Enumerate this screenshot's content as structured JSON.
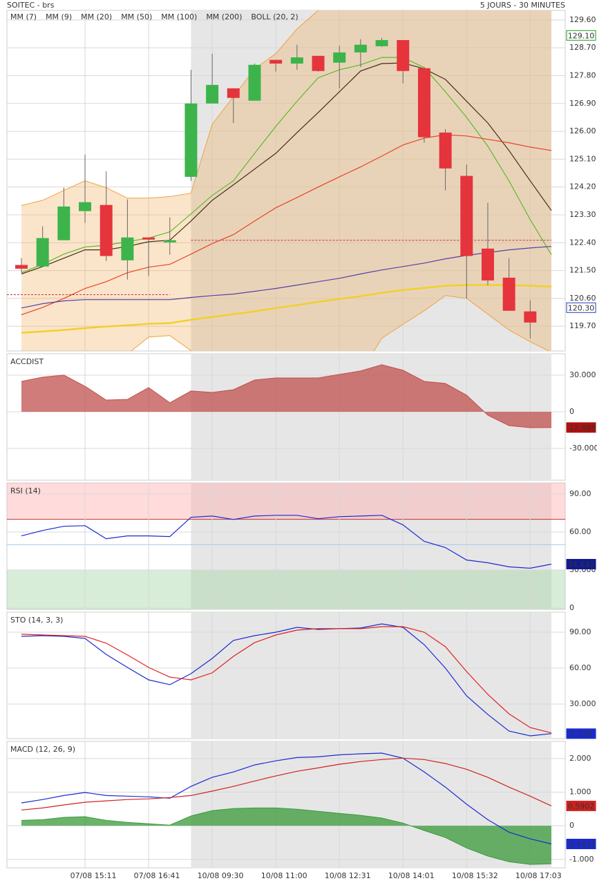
{
  "chart_data": [
    {
      "type": "candlestick",
      "title": "SOITEC - brs",
      "subtitle": "5 JOURS - 30 MINUTES",
      "up_color": "#3cb44b",
      "down_color": "#e5343c",
      "open": [
        121.68,
        121.63,
        122.48,
        123.42,
        123.62,
        121.83,
        122.57,
        122.41,
        124.53,
        126.9,
        127.39,
        126.99,
        128.31,
        128.19,
        128.44,
        128.22,
        128.55,
        128.75,
        128.95,
        128.04,
        125.96,
        124.56,
        122.21,
        121.27,
        120.18,
        null
      ],
      "high": [
        121.9,
        122.93,
        124.18,
        125.25,
        124.71,
        123.8,
        122.57,
        123.22,
        127.99,
        128.51,
        127.39,
        128.19,
        128.31,
        128.8,
        128.44,
        128.77,
        128.98,
        129.02,
        128.95,
        128.08,
        126.07,
        124.93,
        123.69,
        121.9,
        120.54,
        null
      ],
      "low": [
        121.43,
        121.63,
        122.48,
        123.04,
        121.81,
        121.21,
        121.32,
        122.01,
        124.4,
        126.9,
        126.27,
        126.99,
        127.93,
        127.99,
        127.93,
        127.39,
        128.08,
        128.73,
        127.55,
        125.63,
        124.09,
        120.6,
        121.03,
        120.2,
        119.31,
        null
      ],
      "close": [
        121.56,
        122.55,
        123.57,
        123.71,
        121.97,
        122.57,
        122.5,
        122.48,
        126.9,
        127.5,
        127.08,
        128.15,
        128.19,
        128.39,
        127.95,
        128.55,
        128.8,
        128.95,
        127.95,
        125.81,
        124.8,
        121.97,
        121.18,
        120.2,
        119.82,
        null
      ],
      "series": [
        {
          "name": "MM (7)",
          "color": "#22c422",
          "values": [
            121.43,
            121.7,
            122.03,
            122.26,
            122.32,
            122.43,
            122.55,
            122.75,
            123.33,
            123.93,
            124.4,
            125.29,
            126.16,
            126.97,
            127.73,
            127.99,
            128.15,
            128.39,
            128.39,
            128.06,
            127.28,
            126.45,
            125.52,
            124.4,
            123.15,
            122.01
          ]
        },
        {
          "name": "MM (9)",
          "color": "#000000",
          "values": [
            121.39,
            121.63,
            121.9,
            122.17,
            122.17,
            122.28,
            122.43,
            122.48,
            123.1,
            123.77,
            124.27,
            124.78,
            125.29,
            125.96,
            126.61,
            127.28,
            127.95,
            128.19,
            128.21,
            128.02,
            127.68,
            126.97,
            126.27,
            125.38,
            124.4,
            123.44
          ]
        },
        {
          "name": "MM (20)",
          "color": "#e02020",
          "values": [
            120.07,
            120.31,
            120.6,
            120.92,
            121.14,
            121.43,
            121.61,
            121.7,
            122.03,
            122.37,
            122.66,
            123.1,
            123.53,
            123.86,
            124.2,
            124.53,
            124.85,
            125.2,
            125.56,
            125.78,
            125.89,
            125.85,
            125.74,
            125.63,
            125.49,
            125.38
          ]
        },
        {
          "name": "MM (50)",
          "color": "#1a1acc",
          "values": [
            120.29,
            120.43,
            120.52,
            120.56,
            120.56,
            120.56,
            120.56,
            120.56,
            120.63,
            120.69,
            120.74,
            120.83,
            120.92,
            121.03,
            121.14,
            121.25,
            121.39,
            121.52,
            121.63,
            121.74,
            121.88,
            121.99,
            122.08,
            122.17,
            122.23,
            122.28
          ]
        },
        {
          "name": "MM (100)",
          "color": "#e020e0"
        },
        {
          "name": "MM (200)",
          "color": "#f2e21e",
          "width": 2.5,
          "values": [
            119.49,
            119.53,
            119.58,
            119.64,
            119.69,
            119.73,
            119.78,
            119.8,
            119.91,
            120.0,
            120.09,
            120.18,
            120.29,
            120.38,
            120.49,
            120.58,
            120.67,
            120.78,
            120.87,
            120.94,
            121.01,
            121.03,
            121.03,
            121.03,
            121.01,
            120.98
          ]
        },
        {
          "name": "BOLL (20, 2)",
          "color": "#f0a040",
          "type": "band",
          "upper": [
            123.6,
            123.77,
            124.09,
            124.4,
            124.18,
            123.84,
            123.84,
            123.89,
            124.0,
            126.23,
            127.12,
            128.02,
            128.51,
            129.31,
            129.91,
            130.3,
            130.6,
            130.8,
            131.0,
            131.1,
            131.1,
            131.0,
            130.8,
            130.5,
            130.2,
            130.0
          ],
          "lower": [
            118.6,
            118.7,
            118.7,
            118.6,
            118.5,
            118.8,
            119.35,
            119.4,
            118.91,
            118.0,
            117.5,
            117.2,
            117.0,
            116.9,
            116.9,
            117.0,
            118.2,
            119.31,
            119.76,
            120.2,
            120.69,
            120.6,
            120.09,
            119.58,
            119.2,
            118.86
          ]
        }
      ],
      "reference_lines": [
        120.72,
        122.48
      ],
      "reference_color": "#d03030",
      "markers": [
        {
          "value": 129.1,
          "label": "129.10",
          "color": "#1a9a1a",
          "filled": false
        },
        {
          "value": 120.3,
          "label": "120.30",
          "color": "#2040c0",
          "filled": false
        }
      ],
      "ylim": [
        118.9,
        129.91
      ],
      "yticks": [
        {
          "value": 129.6,
          "label": "129.60"
        },
        {
          "value": 128.7,
          "label": "128.70"
        },
        {
          "value": 127.8,
          "label": "127.80"
        },
        {
          "value": 126.9,
          "label": "126.90"
        },
        {
          "value": 126,
          "label": "126.00"
        },
        {
          "value": 125.1,
          "label": "125.10"
        },
        {
          "value": 124.2,
          "label": "124.20"
        },
        {
          "value": 123.3,
          "label": "123.30"
        },
        {
          "value": 122.4,
          "label": "122.40"
        },
        {
          "value": 121.5,
          "label": "121.50"
        },
        {
          "value": 120.6,
          "label": "120.60"
        },
        {
          "value": 119.7,
          "label": "119.70"
        }
      ],
      "grid": true
    },
    {
      "type": "area",
      "title": "ACCDIST",
      "title_color": "#a02020",
      "series": [
        {
          "name": "ACCDIST",
          "color": "#c0504d",
          "type": "area",
          "values": [
            24.9,
            28.3,
            30.0,
            20.9,
            9.6,
            10.2,
            19.8,
            7.4,
            17.0,
            15.8,
            18.1,
            26.0,
            27.7,
            27.7,
            27.7,
            30.6,
            33.4,
            38.5,
            34.0,
            24.9,
            23.2,
            13.6,
            -2.8,
            -11.3,
            -13.0,
            -12.888
          ]
        }
      ],
      "markers": [
        {
          "value": -12.888,
          "color": "#b01010",
          "filled": true
        }
      ],
      "ylim": [
        -56,
        47.5
      ],
      "yticks": [
        {
          "value": 30,
          "label": "30.000"
        },
        0,
        {
          "value": -30,
          "label": "-30.000"
        }
      ],
      "grid": true
    },
    {
      "type": "line",
      "title": "RSI (14)",
      "title_color": "#3a1aa0",
      "series": [
        {
          "name": "RSI (14)",
          "color": "#1a2ad0",
          "values": [
            56.9,
            61.2,
            64.5,
            65.0,
            54.7,
            56.9,
            56.9,
            56.4,
            71.6,
            72.6,
            69.9,
            72.6,
            73.2,
            73.2,
            70.5,
            72.1,
            72.6,
            73.2,
            65.6,
            52.6,
            47.7,
            37.9,
            35.7,
            32.5,
            31.4,
            34.632
          ]
        }
      ],
      "overbought": 70,
      "oversold": 30,
      "midline": 50,
      "markers": [
        {
          "value": 34.632,
          "color": "#101a90",
          "filled": true
        }
      ],
      "ylim": [
        -1.1,
        98.7
      ],
      "yticks": [
        {
          "value": 90,
          "label": "90.00"
        },
        {
          "value": 60,
          "label": "60.00"
        },
        {
          "value": 30,
          "label": "30.000"
        },
        0
      ],
      "grid": true
    },
    {
      "type": "line",
      "title": "STO (14, 3, 3)",
      "title_color": "#1a2ad0",
      "series": [
        {
          "name": "%K",
          "color": "#1a2ad0",
          "values": [
            86.5,
            87.1,
            86.5,
            84.8,
            71.5,
            60.6,
            50.2,
            46.2,
            55.4,
            68.1,
            83.1,
            87.1,
            90.0,
            94.0,
            92.3,
            92.9,
            93.5,
            96.9,
            94.0,
            79.6,
            60.0,
            36.9,
            21.3,
            7.5,
            3.5,
            5.33
          ]
        },
        {
          "name": "%D",
          "color": "#e02020",
          "values": [
            88.3,
            87.7,
            87.1,
            86.5,
            80.8,
            71.0,
            60.6,
            52.5,
            50.2,
            56.0,
            69.8,
            81.3,
            87.7,
            91.7,
            92.9,
            92.9,
            92.9,
            94.6,
            94.6,
            90.0,
            77.9,
            57.1,
            38.1,
            21.9,
            10.4,
            5.9
          ]
        }
      ],
      "markers": [
        {
          "value": 5.33,
          "label": "5.330",
          "color": "#1a2ad0",
          "filled": true
        }
      ],
      "ylim": [
        1.2,
        106.7
      ],
      "yticks": [
        {
          "value": 90,
          "label": "90.00"
        },
        {
          "value": 60,
          "label": "60.00"
        },
        {
          "value": 30,
          "label": "30.000"
        }
      ],
      "grid": true
    },
    {
      "type": "line",
      "title": "MACD (12, 26, 9)",
      "title_color": "#1a2080",
      "categories": [
        null,
        null,
        null,
        "07/08 15:11",
        null,
        null,
        "07/08 16:41",
        null,
        null,
        "10/08 09:30",
        null,
        null,
        "10/08 11:00",
        null,
        null,
        "10/08 12:31",
        null,
        null,
        "10/08 14:01",
        null,
        null,
        "10/08 15:32",
        null,
        null,
        "10/08 17:03",
        null
      ],
      "series": [
        {
          "name": "Histogram",
          "color": "#3a9a3a",
          "type": "area",
          "values": [
            0.16,
            0.18,
            0.25,
            0.27,
            0.16,
            0.1,
            0.06,
            0.02,
            0.29,
            0.45,
            0.51,
            0.53,
            0.53,
            0.49,
            0.43,
            0.37,
            0.31,
            0.23,
            0.08,
            -0.14,
            -0.35,
            -0.66,
            -0.9,
            -1.07,
            -1.15,
            -1.13
          ]
        },
        {
          "name": "MACD",
          "color": "#1a2ad0",
          "values": [
            0.68,
            0.78,
            0.9,
            0.99,
            0.9,
            0.88,
            0.86,
            0.82,
            1.17,
            1.44,
            1.6,
            1.81,
            1.93,
            2.03,
            2.05,
            2.11,
            2.14,
            2.16,
            2.01,
            1.6,
            1.15,
            0.64,
            0.18,
            -0.19,
            -0.39,
            -0.5412
          ]
        },
        {
          "name": "Signal",
          "color": "#d02020",
          "values": [
            0.47,
            0.53,
            0.62,
            0.7,
            0.74,
            0.78,
            0.8,
            0.84,
            0.9,
            1.03,
            1.17,
            1.33,
            1.48,
            1.62,
            1.72,
            1.83,
            1.91,
            1.97,
            2.01,
            1.97,
            1.85,
            1.68,
            1.44,
            1.15,
            0.88,
            0.5902
          ]
        }
      ],
      "markers": [
        {
          "value": 0.5902,
          "color": "#d02020",
          "filled": true
        },
        {
          "value": -0.5412,
          "color": "#1a2ad0",
          "filled": true
        }
      ],
      "ylim": [
        -1.25,
        2.51
      ],
      "yticks": [
        {
          "value": 2,
          "label": "2.000"
        },
        {
          "value": 1,
          "label": "1.000"
        },
        0,
        {
          "value": -1,
          "label": "-1.000"
        }
      ],
      "grid": true
    }
  ]
}
